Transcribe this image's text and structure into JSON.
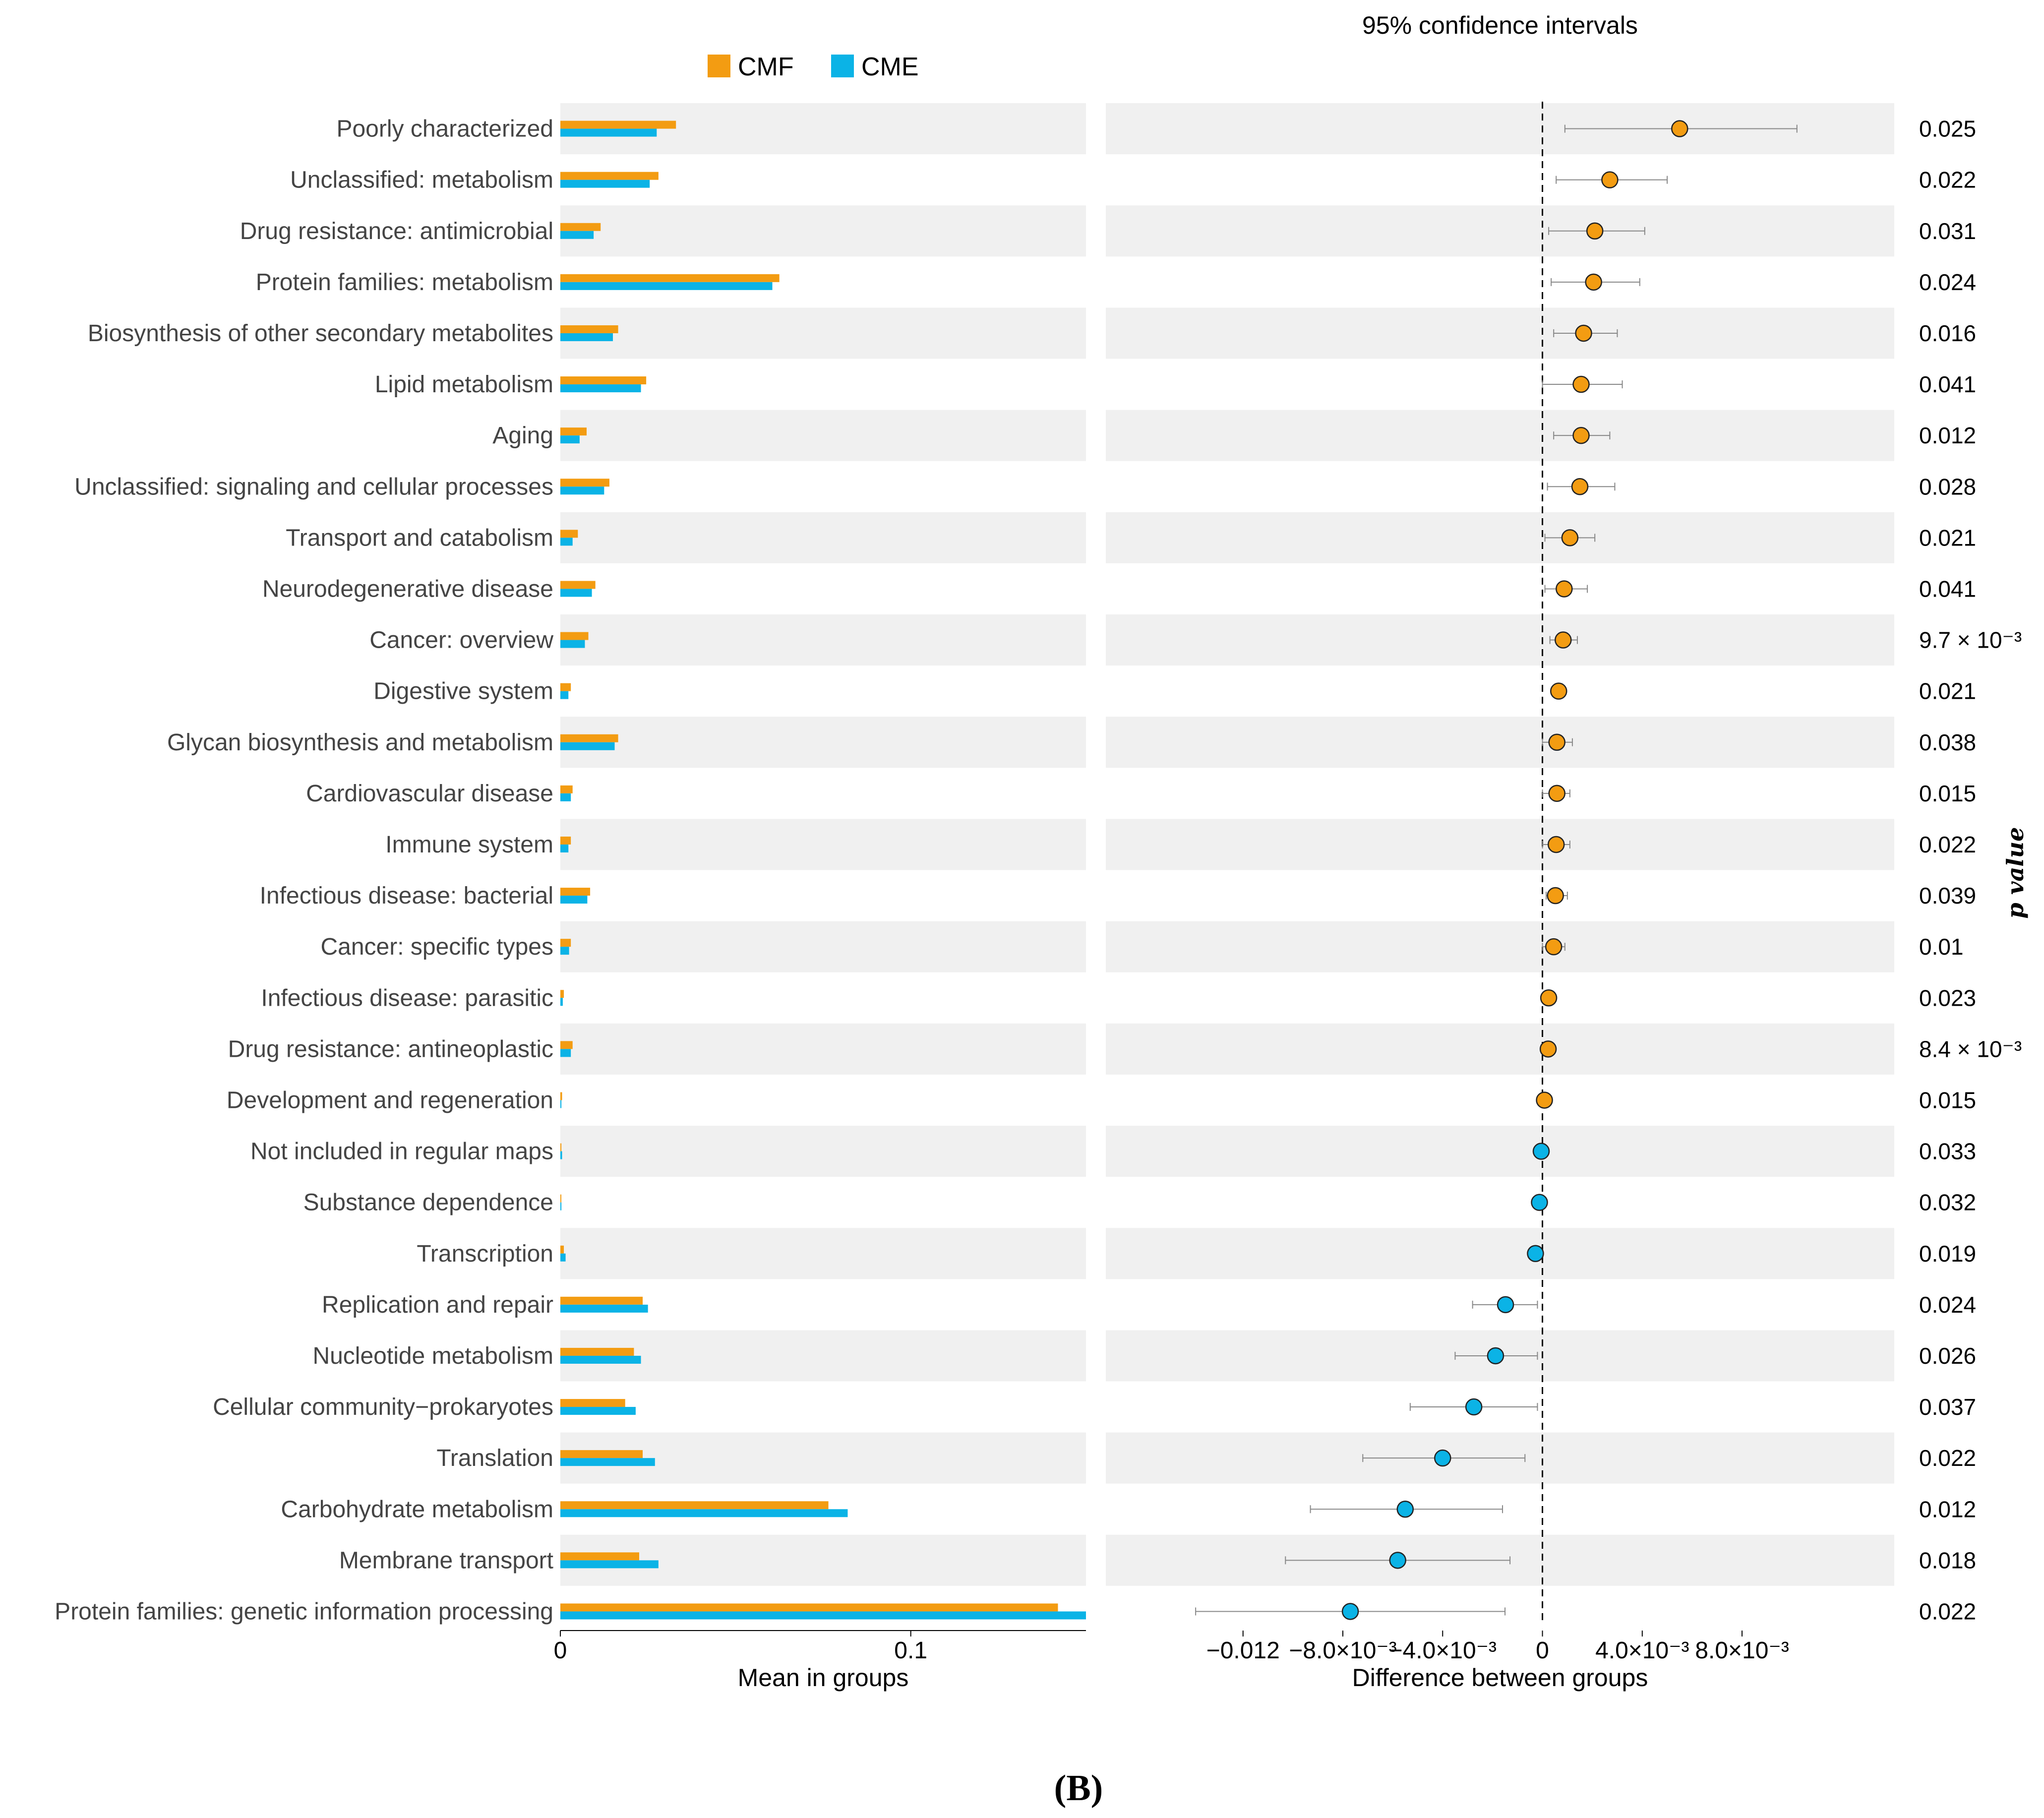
{
  "chart_data": {
    "type": "extended_error_bar",
    "panel_label": "(B)",
    "legend": [
      {
        "name": "CMF",
        "color": "#f39c12"
      },
      {
        "name": "CME",
        "color": "#0bb3e6"
      }
    ],
    "right_title": "95% confidence intervals",
    "left_xlabel": "Mean in groups",
    "right_xlabel": "Difference between groups",
    "pvalue_label": "p value",
    "left_xlim": [
      0,
      0.15
    ],
    "left_ticks": [
      {
        "value": 0,
        "label": "0"
      },
      {
        "value": 0.1,
        "label": "0.1"
      }
    ],
    "right_xlim": [
      -0.0175,
      0.0141
    ],
    "right_ticks": [
      {
        "value": -0.012,
        "label": "−0.012"
      },
      {
        "value": -0.008,
        "label": "−8.0×10⁻³"
      },
      {
        "value": -0.004,
        "label": "−4.0×10⁻³"
      },
      {
        "value": 0,
        "label": "0"
      },
      {
        "value": 0.004,
        "label": "4.0×10⁻³"
      },
      {
        "value": 0.008,
        "label": "8.0×10⁻³"
      }
    ],
    "categories": [
      "Poorly characterized",
      "Unclassified: metabolism",
      "Drug resistance: antimicrobial",
      "Protein families: metabolism",
      "Biosynthesis of other secondary metabolites",
      "Lipid metabolism",
      "Aging",
      "Unclassified: signaling and cellular processes",
      "Transport and catabolism",
      "Neurodegenerative disease",
      "Cancer: overview",
      "Digestive system",
      "Glycan biosynthesis and metabolism",
      "Cardiovascular disease",
      "Immune system",
      "Infectious disease: bacterial",
      "Cancer: specific types",
      "Infectious disease: parasitic",
      "Drug resistance: antineoplastic",
      "Development and regeneration",
      "Not included in regular maps",
      "Substance dependence",
      "Transcription",
      "Replication and repair",
      "Nucleotide metabolism",
      "Cellular community−prokaryotes",
      "Translation",
      "Carbohydrate metabolism",
      "Membrane transport",
      "Protein families: genetic information processing"
    ],
    "series": [
      {
        "name": "CMF",
        "values": [
          0.033,
          0.028,
          0.0115,
          0.0625,
          0.0165,
          0.0245,
          0.0075,
          0.014,
          0.005,
          0.01,
          0.008,
          0.003,
          0.0165,
          0.0035,
          0.003,
          0.0085,
          0.003,
          0.001,
          0.0035,
          0.0005,
          0.0003,
          0.0002,
          0.001,
          0.0235,
          0.021,
          0.0185,
          0.0235,
          0.0765,
          0.0225,
          0.142
        ]
      },
      {
        "name": "CME",
        "values": [
          0.0275,
          0.0255,
          0.0095,
          0.0605,
          0.015,
          0.023,
          0.0055,
          0.0125,
          0.0035,
          0.009,
          0.007,
          0.0023,
          0.0155,
          0.003,
          0.0023,
          0.0077,
          0.0025,
          0.0007,
          0.003,
          0.0003,
          0.0005,
          0.0003,
          0.0015,
          0.025,
          0.023,
          0.0215,
          0.027,
          0.082,
          0.028,
          0.15
        ]
      }
    ],
    "differences": [
      0.0055,
      0.0027,
      0.0021,
      0.00205,
      0.00165,
      0.00155,
      0.00155,
      0.0015,
      0.0011,
      0.00087,
      0.00083,
      0.00065,
      0.00058,
      0.00058,
      0.00055,
      0.00052,
      0.00045,
      0.00025,
      0.00023,
      8e-05,
      -5e-05,
      -0.00012,
      -0.00028,
      -0.00148,
      -0.00188,
      -0.00275,
      -0.004,
      -0.0055,
      -0.0058,
      -0.0077
    ],
    "ci_low": [
      0.0009,
      0.00055,
      0.00025,
      0.00035,
      0.00045,
      0.0,
      0.00045,
      0.0002,
      0.0001,
      0.0001,
      0.0003,
      null,
      0.0,
      0.0,
      0.0,
      0.00015,
      0.0,
      null,
      null,
      null,
      null,
      null,
      null,
      -0.0028,
      -0.0035,
      -0.0053,
      -0.0072,
      -0.0093,
      -0.0103,
      -0.0139
    ],
    "ci_high": [
      0.0102,
      0.005,
      0.0041,
      0.0039,
      0.003,
      0.0032,
      0.0027,
      0.0029,
      0.0021,
      0.0018,
      0.0014,
      null,
      0.0012,
      0.0011,
      0.0011,
      0.001,
      0.0009,
      null,
      null,
      null,
      null,
      null,
      null,
      -0.0002,
      -0.0002,
      -0.0002,
      -0.0007,
      -0.0016,
      -0.0013,
      -0.0015
    ],
    "p_values": [
      "0.025",
      "0.022",
      "0.031",
      "0.024",
      "0.016",
      "0.041",
      "0.012",
      "0.028",
      "0.021",
      "0.041",
      "9.7 × 10⁻³",
      "0.021",
      "0.038",
      "0.015",
      "0.022",
      "0.039",
      "0.01",
      "0.023",
      "8.4 × 10⁻³",
      "0.015",
      "0.033",
      "0.032",
      "0.019",
      "0.024",
      "0.026",
      "0.037",
      "0.022",
      "0.012",
      "0.018",
      "0.022"
    ]
  }
}
